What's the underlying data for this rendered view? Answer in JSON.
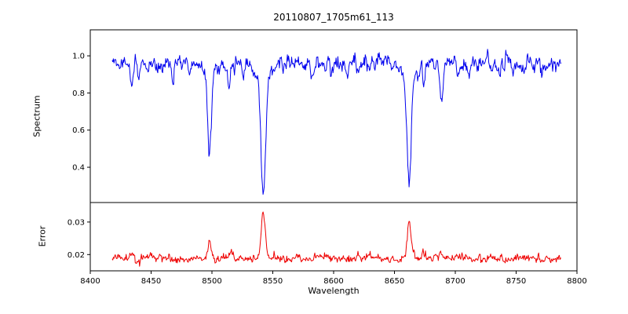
{
  "chart_data": {
    "type": "line",
    "title": "20110807_1705m61_113",
    "xlabel": "Wavelength",
    "xlim": [
      8400,
      8800
    ],
    "x_data_range": [
      8418,
      8787
    ],
    "sample_step": 0.5,
    "grid": false,
    "legend": "none",
    "x_ticks": [
      {
        "value": 8400,
        "label": "8400"
      },
      {
        "value": 8450,
        "label": "8450"
      },
      {
        "value": 8500,
        "label": "8500"
      },
      {
        "value": 8550,
        "label": "8550"
      },
      {
        "value": 8600,
        "label": "8600"
      },
      {
        "value": 8650,
        "label": "8650"
      },
      {
        "value": 8700,
        "label": "8700"
      },
      {
        "value": 8750,
        "label": "8750"
      },
      {
        "value": 8800,
        "label": "8800"
      }
    ],
    "panels": [
      {
        "name": "spectrum",
        "ylabel": "Spectrum",
        "color": "#0000ee",
        "ylim": [
          0.21,
          1.14
        ],
        "y_ticks": [
          {
            "value": 1.0,
            "label": "1.0"
          },
          {
            "value": 0.8,
            "label": "0.8"
          },
          {
            "value": 0.6,
            "label": "0.6"
          },
          {
            "value": 0.4,
            "label": "0.4"
          }
        ],
        "continuum": 0.96,
        "noise": {
          "corr": 0.5,
          "step_sigma": 0.02
        },
        "lines": [
          {
            "center": 8498.0,
            "depth": 0.47,
            "sigma": 1.4
          },
          {
            "center": 8498.0,
            "depth": 0.03,
            "sigma": 4.0
          },
          {
            "center": 8542.1,
            "depth": 0.62,
            "sigma": 1.9
          },
          {
            "center": 8542.1,
            "depth": 0.08,
            "sigma": 5.5
          },
          {
            "center": 8662.1,
            "depth": 0.57,
            "sigma": 1.7
          },
          {
            "center": 8662.1,
            "depth": 0.07,
            "sigma": 5.0
          },
          {
            "center": 8688.6,
            "depth": 0.2,
            "sigma": 1.3
          },
          {
            "center": 8424.0,
            "depth": 0.06,
            "sigma": 1.0
          },
          {
            "center": 8434.0,
            "depth": 0.09,
            "sigma": 1.0
          },
          {
            "center": 8440.0,
            "depth": 0.08,
            "sigma": 1.0
          },
          {
            "center": 8447.0,
            "depth": 0.06,
            "sigma": 0.9
          },
          {
            "center": 8468.0,
            "depth": 0.09,
            "sigma": 1.1
          },
          {
            "center": 8482.0,
            "depth": 0.07,
            "sigma": 1.0
          },
          {
            "center": 8514.0,
            "depth": 0.12,
            "sigma": 1.1
          },
          {
            "center": 8526.0,
            "depth": 0.06,
            "sigma": 0.9
          },
          {
            "center": 8582.0,
            "depth": 0.06,
            "sigma": 1.0
          },
          {
            "center": 8598.0,
            "depth": 0.09,
            "sigma": 1.1
          },
          {
            "center": 8611.0,
            "depth": 0.06,
            "sigma": 0.9
          },
          {
            "center": 8621.0,
            "depth": 0.07,
            "sigma": 1.0
          },
          {
            "center": 8648.0,
            "depth": 0.06,
            "sigma": 0.9
          },
          {
            "center": 8674.0,
            "depth": 0.09,
            "sigma": 1.0
          },
          {
            "center": 8702.0,
            "depth": 0.05,
            "sigma": 0.9
          },
          {
            "center": 8712.0,
            "depth": 0.07,
            "sigma": 1.0
          },
          {
            "center": 8736.0,
            "depth": 0.06,
            "sigma": 0.9
          },
          {
            "center": 8747.0,
            "depth": 0.07,
            "sigma": 1.0
          },
          {
            "center": 8757.0,
            "depth": 0.06,
            "sigma": 0.9
          },
          {
            "center": 8772.0,
            "depth": 0.05,
            "sigma": 0.9
          }
        ]
      },
      {
        "name": "error",
        "ylabel": "Error",
        "color": "#ee0000",
        "ylim": [
          0.015,
          0.036
        ],
        "y_ticks": [
          {
            "value": 0.03,
            "label": "0.03"
          },
          {
            "value": 0.02,
            "label": "0.02"
          }
        ],
        "baseline": 0.0185,
        "noise": {
          "corr": 0.5,
          "step_sigma": 0.0005,
          "spike": 0.0005
        },
        "peaks": [
          {
            "center": 8498.0,
            "height": 0.006,
            "sigma": 1.3
          },
          {
            "center": 8516.0,
            "height": 0.0022,
            "sigma": 1.1
          },
          {
            "center": 8542.1,
            "height": 0.0145,
            "sigma": 1.6
          },
          {
            "center": 8662.1,
            "height": 0.012,
            "sigma": 1.5
          },
          {
            "center": 8688.6,
            "height": 0.0018,
            "sigma": 1.1
          },
          {
            "center": 8674.0,
            "height": 0.0012,
            "sigma": 1.0
          },
          {
            "center": 8434.0,
            "height": 0.0008,
            "sigma": 1.0
          }
        ]
      }
    ]
  }
}
